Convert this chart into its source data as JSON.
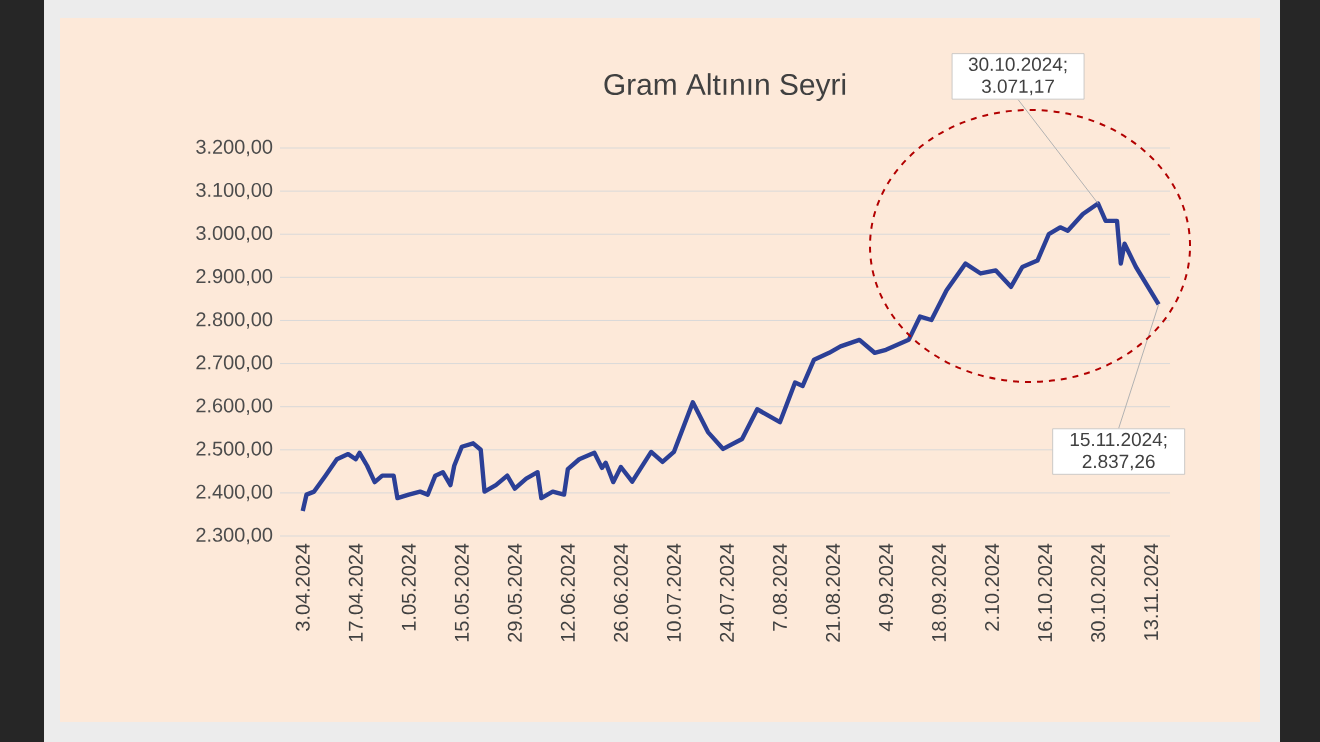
{
  "chart_data": {
    "type": "line",
    "title": "Gram Altının Seyri",
    "x": [
      "2024-04-03",
      "2024-04-04",
      "2024-04-06",
      "2024-04-09",
      "2024-04-12",
      "2024-04-15",
      "2024-04-17",
      "2024-04-18",
      "2024-04-20",
      "2024-04-22",
      "2024-04-24",
      "2024-04-27",
      "2024-04-28",
      "2024-05-01",
      "2024-05-04",
      "2024-05-06",
      "2024-05-08",
      "2024-05-10",
      "2024-05-12",
      "2024-05-13",
      "2024-05-15",
      "2024-05-18",
      "2024-05-20",
      "2024-05-21",
      "2024-05-24",
      "2024-05-27",
      "2024-05-29",
      "2024-06-01",
      "2024-06-04",
      "2024-06-05",
      "2024-06-08",
      "2024-06-11",
      "2024-06-12",
      "2024-06-15",
      "2024-06-19",
      "2024-06-21",
      "2024-06-22",
      "2024-06-24",
      "2024-06-26",
      "2024-06-29",
      "2024-07-04",
      "2024-07-07",
      "2024-07-10",
      "2024-07-15",
      "2024-07-19",
      "2024-07-23",
      "2024-07-28",
      "2024-08-01",
      "2024-08-07",
      "2024-08-11",
      "2024-08-13",
      "2024-08-16",
      "2024-08-20",
      "2024-08-23",
      "2024-08-28",
      "2024-09-01",
      "2024-09-04",
      "2024-09-10",
      "2024-09-13",
      "2024-09-16",
      "2024-09-20",
      "2024-09-25",
      "2024-09-29",
      "2024-10-03",
      "2024-10-07",
      "2024-10-10",
      "2024-10-14",
      "2024-10-17",
      "2024-10-20",
      "2024-10-22",
      "2024-10-26",
      "2024-10-30",
      "2024-11-01",
      "2024-11-04",
      "2024-11-05",
      "2024-11-06",
      "2024-11-09",
      "2024-11-15"
    ],
    "series": [
      {
        "color": "#2b3f96",
        "values": [
          2358,
          2396,
          2403,
          2440,
          2478,
          2490,
          2478,
          2493,
          2463,
          2425,
          2440,
          2440,
          2388,
          2396,
          2403,
          2396,
          2440,
          2448,
          2418,
          2463,
          2507,
          2515,
          2500,
          2403,
          2418,
          2440,
          2410,
          2433,
          2448,
          2388,
          2403,
          2396,
          2455,
          2478,
          2493,
          2458,
          2470,
          2425,
          2460,
          2426,
          2495,
          2472,
          2495,
          2610,
          2541,
          2502,
          2525,
          2594,
          2564,
          2656,
          2648,
          2709,
          2725,
          2740,
          2755,
          2725,
          2732,
          2755,
          2809,
          2801,
          2870,
          2932,
          2909,
          2916,
          2878,
          2924,
          2939,
          3000,
          3016,
          3008,
          3047,
          3071.17,
          3031,
          3031,
          2932,
          2978,
          2924,
          2837.26
        ]
      }
    ],
    "xlim": [
      "2024-03-28",
      "2024-11-18"
    ],
    "xticks": [
      {
        "value": "2024-04-03",
        "label": "3.04.2024"
      },
      {
        "value": "2024-04-17",
        "label": "17.04.2024"
      },
      {
        "value": "2024-05-01",
        "label": "1.05.2024"
      },
      {
        "value": "2024-05-15",
        "label": "15.05.2024"
      },
      {
        "value": "2024-05-29",
        "label": "29.05.2024"
      },
      {
        "value": "2024-06-12",
        "label": "12.06.2024"
      },
      {
        "value": "2024-06-26",
        "label": "26.06.2024"
      },
      {
        "value": "2024-07-10",
        "label": "10.07.2024"
      },
      {
        "value": "2024-07-24",
        "label": "24.07.2024"
      },
      {
        "value": "2024-08-07",
        "label": "7.08.2024"
      },
      {
        "value": "2024-08-21",
        "label": "21.08.2024"
      },
      {
        "value": "2024-09-04",
        "label": "4.09.2024"
      },
      {
        "value": "2024-09-18",
        "label": "18.09.2024"
      },
      {
        "value": "2024-10-02",
        "label": "2.10.2024"
      },
      {
        "value": "2024-10-16",
        "label": "16.10.2024"
      },
      {
        "value": "2024-10-30",
        "label": "30.10.2024"
      },
      {
        "value": "2024-11-13",
        "label": "13.11.2024"
      }
    ],
    "ylim": [
      2300,
      3200
    ],
    "yticks": [
      {
        "value": 2300,
        "label": "2.300,00"
      },
      {
        "value": 2400,
        "label": "2.400,00"
      },
      {
        "value": 2500,
        "label": "2.500,00"
      },
      {
        "value": 2600,
        "label": "2.600,00"
      },
      {
        "value": 2700,
        "label": "2.700,00"
      },
      {
        "value": 2800,
        "label": "2.800,00"
      },
      {
        "value": 2900,
        "label": "2.900,00"
      },
      {
        "value": 3000,
        "label": "3.000,00"
      },
      {
        "value": 3100,
        "label": "3.100,00"
      },
      {
        "value": 3200,
        "label": "3.200,00"
      }
    ],
    "annotations": [
      {
        "text": "30.10.2024; 3.071,17",
        "x": "2024-10-30",
        "y": 3071.17
      },
      {
        "text": "15.11.2024; 2.837,26",
        "x": "2024-11-15",
        "y": 2837.26
      }
    ],
    "grid": "y",
    "marker": "none",
    "line_style": "solid"
  }
}
